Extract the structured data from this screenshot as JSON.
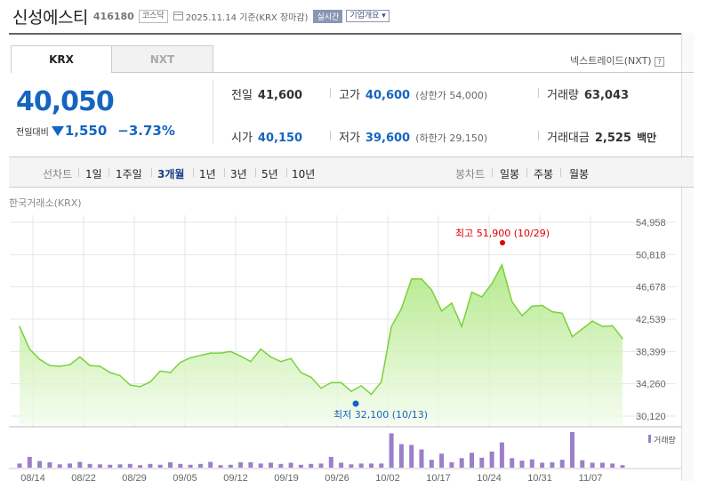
{
  "header": {
    "name": "신성에스티",
    "code": "416180",
    "market": "코스닥",
    "date": "2025.11.14 기준(KRX 장마감)",
    "realtime": "실시간",
    "overview": "기업개요 ▾"
  },
  "tabs": [
    {
      "label": "KRX",
      "active": true
    },
    {
      "label": "NXT",
      "active": false
    }
  ],
  "nextrade": {
    "label": "넥스트레이드(NXT)",
    "help": "?"
  },
  "quote": {
    "price": "40,050",
    "change_label": "전일대비",
    "change": "1,550",
    "change_percent": "−3.73%",
    "direction": "down",
    "color": "#1565c0"
  },
  "stats": {
    "prev_close": {
      "label": "전일",
      "value": "41,600"
    },
    "high": {
      "label": "고가",
      "value": "40,600",
      "sub_open": "(",
      "sub_label": "상한가",
      "sub_value": "54,000",
      "sub_close": ")"
    },
    "volume": {
      "label": "거래량",
      "value": "63,043"
    },
    "open": {
      "label": "시가",
      "value": "40,150"
    },
    "low": {
      "label": "저가",
      "value": "39,600",
      "sub_open": "(",
      "sub_label": "하한가",
      "sub_value": "29,150",
      "sub_close": ")"
    },
    "trade_value": {
      "label": "거래대금",
      "value": "2,525",
      "unit": "백만"
    }
  },
  "toolbar": {
    "line_label": "선차트",
    "periods": [
      "1일",
      "1주일",
      "3개월",
      "1년",
      "3년",
      "5년",
      "10년"
    ],
    "active_period": "3개월",
    "candle_label": "봉차트",
    "candle_periods": [
      "일봉",
      "주봉",
      "월봉"
    ]
  },
  "exchange_label": "한국거래소(KRX)",
  "chart_data": {
    "type": "area",
    "title": "",
    "y_ticks": [
      "54,958",
      "50,818",
      "46,678",
      "42,539",
      "38,399",
      "34,260",
      "30,120"
    ],
    "ylim": [
      30120,
      54958
    ],
    "x_ticks": [
      "08/14",
      "08/22",
      "08/29",
      "09/05",
      "09/12",
      "09/19",
      "09/26",
      "10/02",
      "10/17",
      "10/24",
      "10/31",
      "11/07"
    ],
    "series": [
      {
        "values": [
          41600,
          38700,
          37400,
          36600,
          36500,
          36700,
          37700,
          36600,
          36500,
          35700,
          35300,
          34100,
          33900,
          34500,
          35900,
          35700,
          37000,
          37600,
          37900,
          38200,
          38200,
          38400,
          37800,
          37100,
          38700,
          37700,
          37100,
          37500,
          35700,
          35100,
          33700,
          34400,
          34400,
          33300,
          34000,
          32900,
          34500,
          41600,
          43900,
          47700,
          47700,
          46300,
          43600,
          44600,
          41600,
          46000,
          45400,
          47100,
          49500,
          44800,
          43000,
          44200,
          44300,
          43500,
          43300,
          40300,
          41300,
          42300,
          41600,
          41700,
          40050
        ]
      }
    ],
    "annotations": {
      "high": {
        "label": "최고 51,900 (10/29)",
        "color": "#e00000"
      },
      "low": {
        "label": "최저 32,100 (10/13)",
        "color": "#1565c0"
      }
    },
    "volume": {
      "legend": "거래량",
      "values": [
        1,
        2.6,
        1.6,
        1.3,
        0.8,
        1.0,
        1.4,
        0.9,
        0.8,
        0.7,
        0.8,
        0.9,
        0.6,
        0.9,
        0.7,
        1.3,
        0.9,
        0.7,
        0.9,
        1.4,
        0.6,
        0.7,
        1.3,
        1.3,
        1.0,
        1.2,
        0.9,
        1.2,
        0.7,
        0.9,
        1.0,
        2.6,
        1.2,
        0.8,
        1.0,
        1.0,
        1.0,
        8.3,
        5.7,
        5.5,
        4.4,
        1.9,
        3.4,
        1.3,
        2.3,
        3.6,
        2.4,
        3.9,
        6.1,
        2.3,
        1.7,
        2.0,
        1.2,
        1.3,
        1.9,
        8.6,
        1.8,
        1.2,
        1.2,
        1.0,
        0.6
      ]
    },
    "colors": {
      "line": "#7ad13a",
      "fill_top": "#a9e67a",
      "fill_bottom": "#f4fcee",
      "volume": "#9b7fc9",
      "grid": "#e6e6e6"
    }
  }
}
